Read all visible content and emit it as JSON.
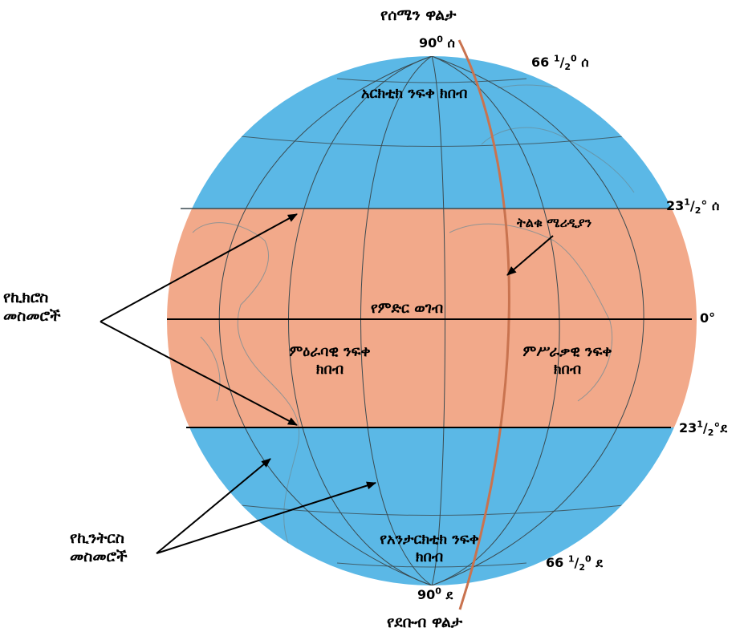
{
  "labels": {
    "north_pole": "የሰሜን ዋልታ",
    "north_90": "90",
    "north_90_sup": "0",
    "north_90_dir": "ሰ",
    "arctic_lat_num": "66",
    "arctic_lat_sup": "1",
    "arctic_lat_sub": "2",
    "arctic_lat_deg": "0",
    "arctic_lat_dir": "ሰ",
    "arctic_zone": "አርክቲክ ንፍቀ ክበብ",
    "cancer_lat_num": "23",
    "cancer_lat_sup": "1",
    "cancer_lat_sub": "2",
    "cancer_lat_tail": "° ሰ",
    "prime_meridian": "ትልቁ ሜሪዲያን",
    "tropics_line1": "የኪክሮስ",
    "tropics_line2": "መስመሮች",
    "equator": "የምድር ወገብ",
    "equator_deg": "0°",
    "western_line1": "ምዕራባዊ ንፍቀ",
    "western_line2": "ክበብ",
    "eastern_line1": "ምሥራቃዊ ንፍቀ",
    "eastern_line2": "ክበብ",
    "capricorn_lat_num": "23",
    "capricorn_lat_sup": "1",
    "capricorn_lat_sub": "2",
    "capricorn_lat_tail": "°ደ",
    "meridians_line1": "የኪንትርስ",
    "meridians_line2": "መስመሮች",
    "antarctic_zone_line1": "የአንታርክቲክ ንፍቀ",
    "antarctic_zone_line2": "ክበብ",
    "antarctic_lat_num": "66",
    "antarctic_lat_sup": "1",
    "antarctic_lat_sub": "2",
    "antarctic_lat_deg": "0",
    "antarctic_lat_dir": "ደ",
    "south_90": "90",
    "south_90_sup": "0",
    "south_90_dir": "ደ",
    "south_pole": "የደቡብ ዋልታ"
  },
  "colors": {
    "polar_fill": "#5bb8e6",
    "tropical_fill": "#f2a98a",
    "prime_meridian_line": "#c9734f",
    "grid_line": "#3a4a50",
    "land_outline": "#6a8a96"
  }
}
